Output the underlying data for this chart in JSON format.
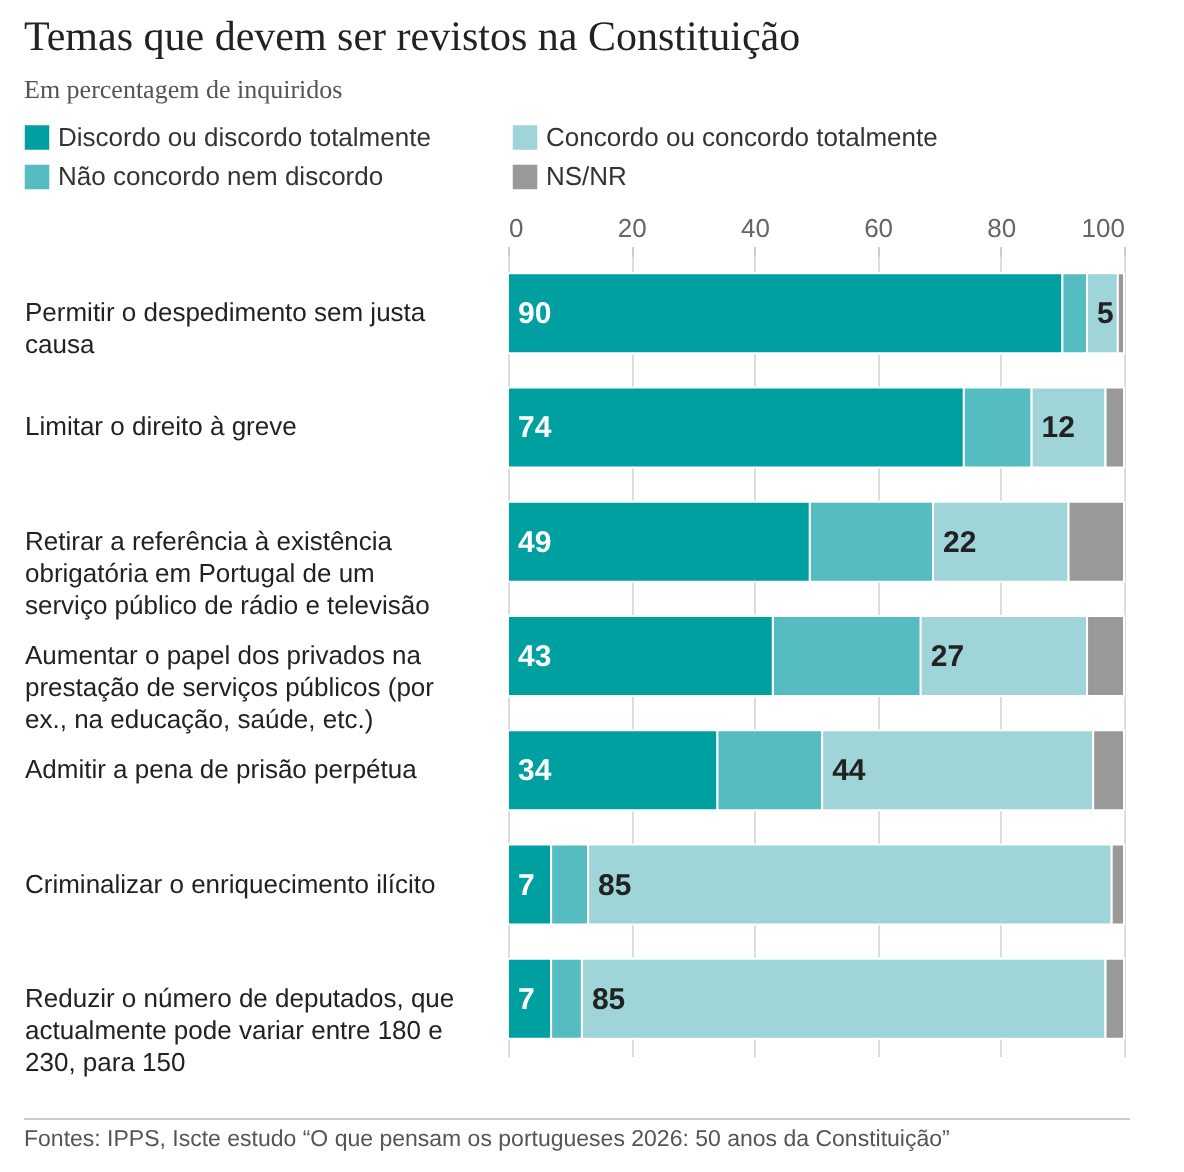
{
  "chart_data": {
    "type": "bar",
    "orientation": "horizontal",
    "stacked": true,
    "title": "Temas que devem ser revistos na Constituição",
    "subtitle": "Em percentagem de inquiridos",
    "categories": [
      "Permitir o despedimento sem justa causa",
      "Limitar o direito à greve",
      "Retirar a referência à existência obrigatória em Portugal de um serviço público de rádio e televisão",
      "Aumentar o papel dos privados na prestação de serviços públicos (por ex., na educação, saúde, etc.)",
      "Admitir a pena de prisão perpétua",
      "Criminalizar o enriquecimento ilícito",
      "Reduzir o número de deputados, que actualmente pode variar entre 180 e 230, para 150"
    ],
    "series": [
      {
        "name": "Discordo ou discordo totalmente",
        "color": "#00a0a0",
        "values": [
          90,
          74,
          49,
          43,
          34,
          7,
          7
        ],
        "value_labels": [
          "90",
          "74",
          "49",
          "43",
          "34",
          "7",
          "7"
        ]
      },
      {
        "name": "Não concordo nem discordo",
        "color": "#55bcc1",
        "values": [
          4,
          11,
          20,
          24,
          17,
          6,
          5
        ]
      },
      {
        "name": "Concordo ou concordo totalmente",
        "color": "#9fd5d9",
        "values": [
          5,
          12,
          22,
          27,
          44,
          85,
          85
        ],
        "value_labels": [
          "5",
          "12",
          "22",
          "27",
          "44",
          "85",
          "85"
        ]
      },
      {
        "name": "NS/NR",
        "color": "#999999",
        "values": [
          1,
          3,
          9,
          6,
          5,
          2,
          3
        ]
      }
    ],
    "xlim": [
      0,
      100
    ],
    "xticks": [
      0,
      20,
      40,
      60,
      80,
      100
    ],
    "grid": "x",
    "legend": "top",
    "annotations": [
      "Fontes: IPPS, Iscte estudo “O que pensam os portugueses 2026: 50 anos da Constituição”"
    ]
  }
}
